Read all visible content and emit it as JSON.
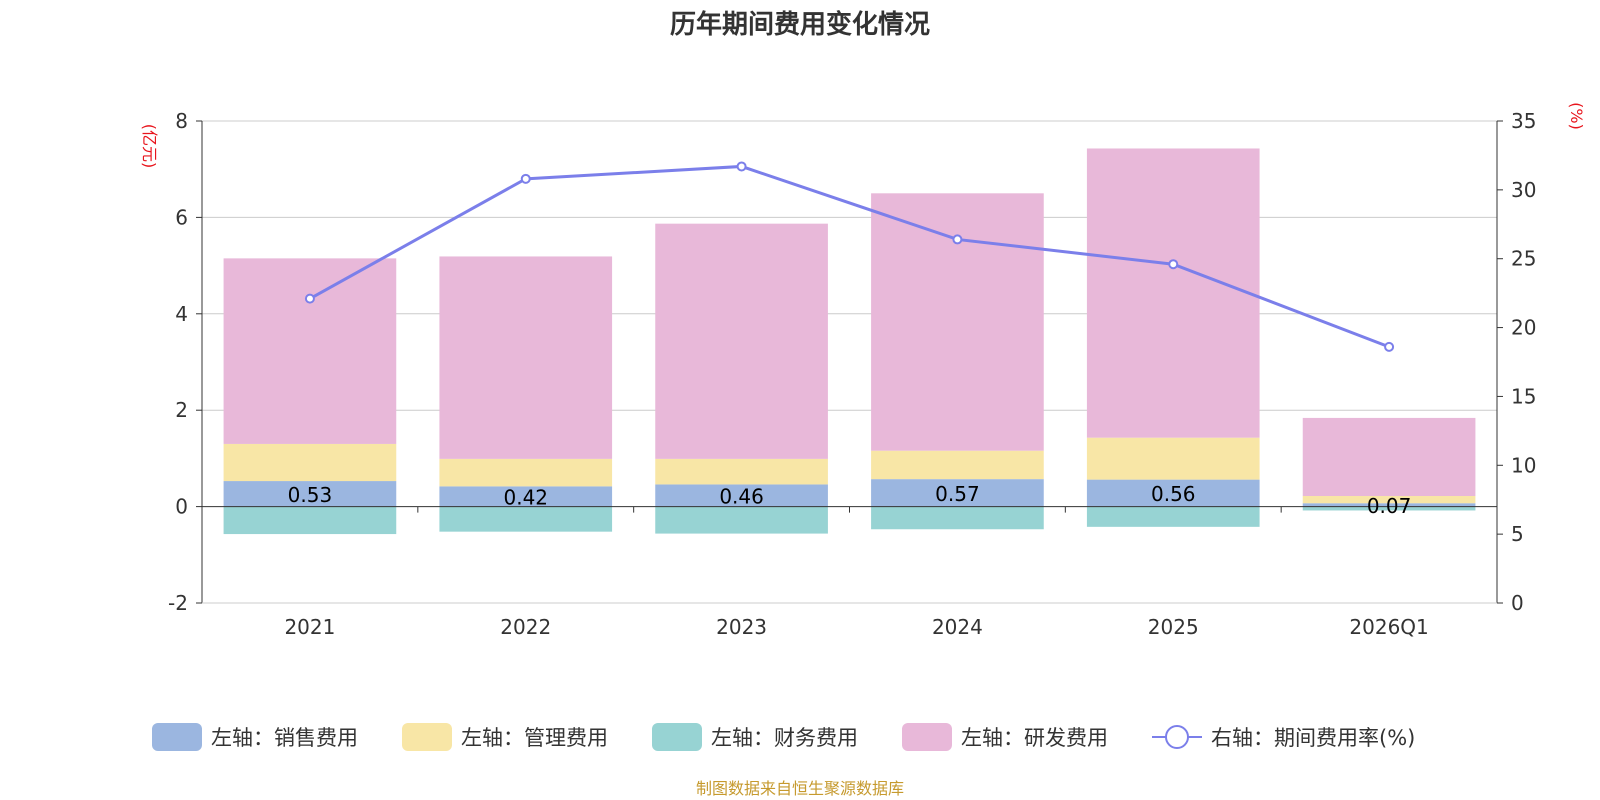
{
  "chart_data": {
    "type": "bar",
    "title": "历年期间费用变化情况",
    "categories": [
      "2021",
      "2022",
      "2023",
      "2024",
      "2025",
      "2026Q1"
    ],
    "left_axis": {
      "unit": "(亿元)",
      "ylim": [
        -2,
        8
      ],
      "ticks": [
        -2,
        0,
        2,
        4,
        6,
        8
      ]
    },
    "right_axis": {
      "unit": "(%)",
      "ylim": [
        0,
        35
      ],
      "ticks": [
        0,
        5,
        10,
        15,
        20,
        25,
        30,
        35
      ]
    },
    "series": [
      {
        "name": "左轴：销售费用",
        "axis": "left",
        "kind": "bar",
        "color": "#9bb6e0",
        "values": [
          0.53,
          0.42,
          0.46,
          0.57,
          0.56,
          0.07
        ],
        "labels": [
          "0.53",
          "0.42",
          "0.46",
          "0.57",
          "0.56",
          "0.07"
        ]
      },
      {
        "name": "左轴：管理费用",
        "axis": "left",
        "kind": "bar",
        "color": "#f8e6a6",
        "values": [
          0.77,
          0.57,
          0.53,
          0.59,
          0.87,
          0.15
        ]
      },
      {
        "name": "左轴：财务费用",
        "axis": "left",
        "kind": "bar",
        "color": "#97d3d3",
        "values": [
          -0.57,
          -0.52,
          -0.56,
          -0.47,
          -0.42,
          -0.08
        ]
      },
      {
        "name": "左轴：研发费用",
        "axis": "left",
        "kind": "bar",
        "color": "#e8b8d9",
        "values": [
          3.85,
          4.2,
          4.88,
          5.34,
          6.0,
          1.62
        ]
      },
      {
        "name": "右轴：期间费用率(%)",
        "axis": "right",
        "kind": "line",
        "color": "#7b7fea",
        "values": [
          22.1,
          30.8,
          31.7,
          26.4,
          24.6,
          18.6
        ]
      }
    ],
    "source": "制图数据来自恒生聚源数据库"
  }
}
